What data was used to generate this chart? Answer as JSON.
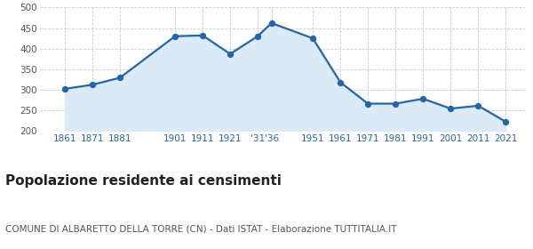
{
  "x_numeric": [
    1861,
    1871,
    1881,
    1901,
    1911,
    1921,
    1931,
    1936,
    1951,
    1961,
    1971,
    1981,
    1991,
    2001,
    2011,
    2021
  ],
  "values": [
    302,
    312,
    329,
    430,
    432,
    387,
    430,
    462,
    425,
    318,
    266,
    266,
    278,
    254,
    261,
    222
  ],
  "tick_positions": [
    1861,
    1871,
    1881,
    1901,
    1911,
    1921,
    1931,
    1936,
    1951,
    1961,
    1971,
    1981,
    1991,
    2001,
    2011,
    2021
  ],
  "tick_labels": [
    "1861",
    "1871",
    "1881",
    "1901",
    "1911",
    "1921",
    "'31",
    "'36",
    "1951",
    "1961",
    "1971",
    "1981",
    "1991",
    "2001",
    "2011",
    "2021"
  ],
  "line_color": "#2266aa",
  "fill_color": "#daeaf7",
  "marker_color": "#2266aa",
  "grid_color": "#cccccc",
  "background_color": "#ffffff",
  "ylim": [
    200,
    500
  ],
  "yticks": [
    200,
    250,
    300,
    350,
    400,
    450,
    500
  ],
  "xlim_left": 1852,
  "xlim_right": 2028,
  "title": "Popolazione residente ai censimenti",
  "subtitle": "COMUNE DI ALBARETTO DELLA TORRE (CN) - Dati ISTAT - Elaborazione TUTTITALIA.IT",
  "title_fontsize": 11,
  "subtitle_fontsize": 7.5,
  "tick_label_color": "#2266aa",
  "ytick_label_color": "#555555"
}
